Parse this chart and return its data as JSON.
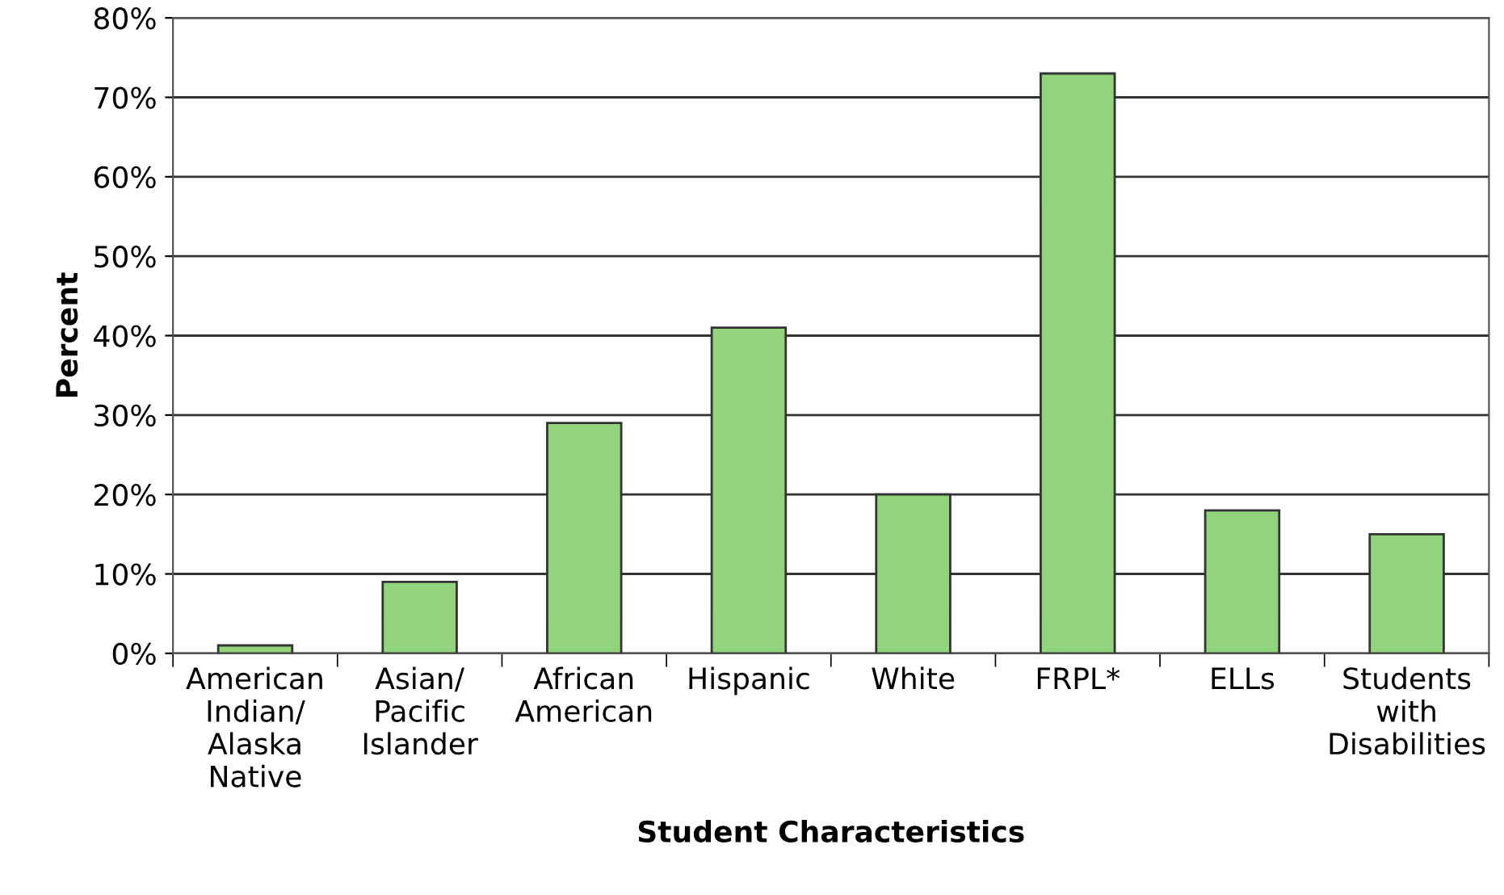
{
  "chart_data": {
    "type": "bar",
    "xlabel": "Student Characteristics",
    "ylabel": "Percent",
    "categories": [
      "American\nIndian/\nAlaska\nNative",
      "Asian/\nPacific\nIslander",
      "African\nAmerican",
      "Hispanic",
      "White",
      "FRPL*",
      "ELLs",
      "Students\nwith\nDisabilities"
    ],
    "values": [
      1,
      9,
      29,
      41,
      20,
      73,
      18,
      15
    ],
    "color": "#92d47c",
    "ylim": [
      0,
      80
    ],
    "yticks": [
      {
        "value": 0,
        "label": "0%"
      },
      {
        "value": 10,
        "label": "10%"
      },
      {
        "value": 20,
        "label": "20%"
      },
      {
        "value": 30,
        "label": "30%"
      },
      {
        "value": 40,
        "label": "40%"
      },
      {
        "value": 50,
        "label": "50%"
      },
      {
        "value": 60,
        "label": "60%"
      },
      {
        "value": 70,
        "label": "70%"
      },
      {
        "value": 80,
        "label": "80%"
      }
    ],
    "grid": "y"
  }
}
